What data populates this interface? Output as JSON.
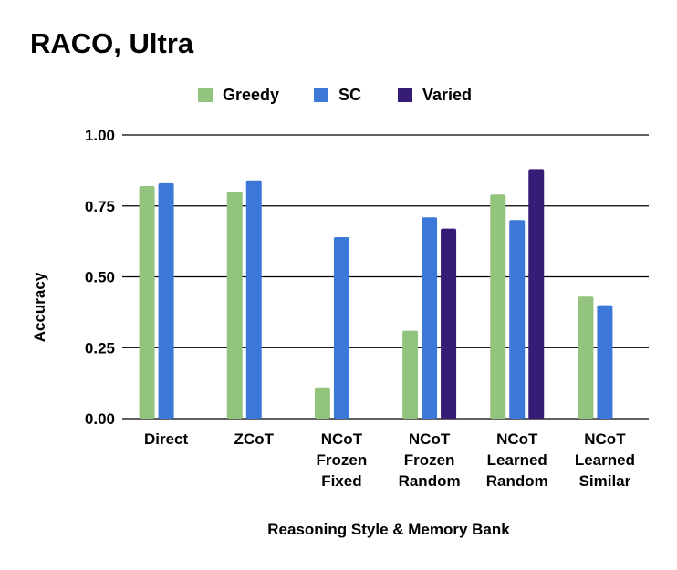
{
  "chart_data": {
    "type": "bar",
    "title": "RACO, Ultra",
    "xlabel": "Reasoning Style & Memory Bank",
    "ylabel": "Accuracy",
    "ylim": [
      0,
      1
    ],
    "yticks": [
      "0.00",
      "0.25",
      "0.50",
      "0.75",
      "1.00"
    ],
    "grid": true,
    "legend_position": "top",
    "categories": [
      [
        "Direct"
      ],
      [
        "ZCoT"
      ],
      [
        "NCoT",
        "Frozen",
        "Fixed"
      ],
      [
        "NCoT",
        "Frozen",
        "Random"
      ],
      [
        "NCoT",
        "Learned",
        "Random"
      ],
      [
        "NCoT",
        "Learned",
        "Similar"
      ]
    ],
    "series": [
      {
        "name": "Greedy",
        "color": "#93c47d",
        "values": [
          0.82,
          0.8,
          0.11,
          0.31,
          0.79,
          0.43
        ]
      },
      {
        "name": "SC",
        "color": "#3c78d8",
        "values": [
          0.83,
          0.84,
          0.64,
          0.71,
          0.7,
          0.4
        ]
      },
      {
        "name": "Varied",
        "color": "#351c75",
        "values": [
          null,
          null,
          null,
          0.67,
          0.88,
          null
        ]
      }
    ]
  }
}
